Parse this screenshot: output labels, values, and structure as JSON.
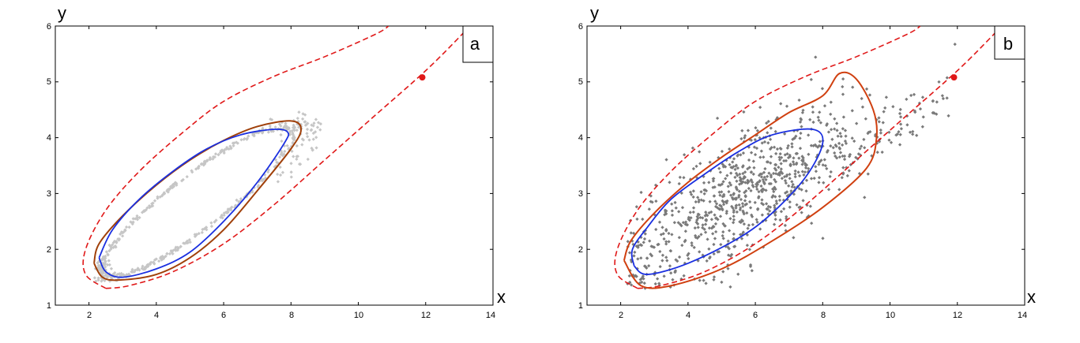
{
  "figure": {
    "panels": [
      {
        "panel_label": "a",
        "xlabel": "x",
        "ylabel": "y",
        "xlim": [
          1,
          14
        ],
        "ylim": [
          1,
          6
        ],
        "x_ticks": [
          "2",
          "4",
          "6",
          "8",
          "10",
          "12",
          "14"
        ],
        "y_ticks": [
          "1",
          "2",
          "3",
          "4",
          "5",
          "6"
        ]
      },
      {
        "panel_label": "b",
        "xlabel": "x",
        "ylabel": "y",
        "xlim": [
          1,
          14
        ],
        "ylim": [
          1,
          6
        ],
        "x_ticks": [
          "2",
          "4",
          "6",
          "8",
          "10",
          "12",
          "14"
        ],
        "y_ticks": [
          "1",
          "2",
          "3",
          "4",
          "5",
          "6"
        ]
      }
    ]
  },
  "colors": {
    "blue_curve": "#1a2fe0",
    "brown_curve_a": "#a0400a",
    "brown_curve_b": "#d04010",
    "dashed_curve": "#e01818",
    "point": "#e01818",
    "scatter_a": "#c6c6c6",
    "scatter_b": "#7a7a7a"
  },
  "chart_data": [
    {
      "type": "scatter",
      "panel": "a",
      "xlim": [
        1,
        14
      ],
      "ylim": [
        1,
        6
      ],
      "marked_point": {
        "x": 11.9,
        "y": 5.08
      },
      "series": [
        {
          "kind": "ellipse",
          "style": "solid",
          "color_key": "blue_curve",
          "points": [
            [
              2.3,
              1.85
            ],
            [
              2.5,
              1.6
            ],
            [
              3.0,
              1.5
            ],
            [
              4.0,
              1.65
            ],
            [
              5.0,
              1.95
            ],
            [
              6.0,
              2.5
            ],
            [
              7.0,
              3.2
            ],
            [
              7.8,
              3.9
            ],
            [
              7.9,
              4.1
            ],
            [
              7.5,
              4.15
            ],
            [
              6.5,
              4.05
            ],
            [
              5.5,
              3.8
            ],
            [
              4.5,
              3.4
            ],
            [
              3.5,
              2.9
            ],
            [
              2.7,
              2.35
            ],
            [
              2.3,
              1.85
            ]
          ]
        },
        {
          "kind": "ellipse",
          "style": "solid",
          "color_key": "brown_curve_a",
          "points": [
            [
              2.15,
              1.75
            ],
            [
              2.4,
              1.5
            ],
            [
              2.9,
              1.45
            ],
            [
              4.0,
              1.55
            ],
            [
              5.0,
              1.85
            ],
            [
              6.0,
              2.35
            ],
            [
              7.0,
              3.05
            ],
            [
              8.0,
              3.8
            ],
            [
              8.3,
              4.15
            ],
            [
              8.0,
              4.3
            ],
            [
              7.0,
              4.2
            ],
            [
              6.0,
              3.95
            ],
            [
              5.0,
              3.6
            ],
            [
              4.0,
              3.15
            ],
            [
              3.0,
              2.6
            ],
            [
              2.3,
              2.1
            ],
            [
              2.15,
              1.75
            ]
          ]
        },
        {
          "kind": "boundary",
          "style": "dashed",
          "color_key": "dashed_curve",
          "points": [
            [
              2.5,
              1.3
            ],
            [
              3.2,
              1.35
            ],
            [
              4.5,
              1.6
            ],
            [
              6.0,
              2.1
            ],
            [
              7.5,
              2.8
            ],
            [
              9.0,
              3.6
            ],
            [
              10.5,
              4.4
            ],
            [
              12.0,
              5.2
            ],
            [
              13.0,
              5.8
            ],
            [
              13.3,
              6.0
            ]
          ]
        },
        {
          "kind": "boundary",
          "style": "dashed",
          "color_key": "dashed_curve",
          "points": [
            [
              2.5,
              1.3
            ],
            [
              1.9,
              1.55
            ],
            [
              1.9,
              2.0
            ],
            [
              2.5,
              2.7
            ],
            [
              3.5,
              3.4
            ],
            [
              4.8,
              4.1
            ],
            [
              6.0,
              4.65
            ],
            [
              7.5,
              5.1
            ],
            [
              9.0,
              5.45
            ],
            [
              10.5,
              5.85
            ],
            [
              10.9,
              6.0
            ]
          ]
        }
      ]
    },
    {
      "type": "scatter",
      "panel": "b",
      "xlim": [
        1,
        14
      ],
      "ylim": [
        1,
        6
      ],
      "marked_point": {
        "x": 11.9,
        "y": 5.08
      },
      "series": [
        {
          "kind": "ellipse",
          "style": "solid",
          "color_key": "blue_curve",
          "points": [
            [
              2.4,
              1.7
            ],
            [
              2.8,
              1.55
            ],
            [
              4.0,
              1.75
            ],
            [
              5.5,
              2.2
            ],
            [
              6.5,
              2.65
            ],
            [
              7.5,
              3.3
            ],
            [
              8.0,
              3.9
            ],
            [
              7.7,
              4.15
            ],
            [
              6.5,
              4.05
            ],
            [
              5.5,
              3.75
            ],
            [
              4.5,
              3.35
            ],
            [
              3.5,
              2.9
            ],
            [
              2.8,
              2.4
            ],
            [
              2.35,
              2.0
            ],
            [
              2.4,
              1.7
            ]
          ]
        },
        {
          "kind": "region",
          "style": "solid",
          "color_key": "brown_curve_b",
          "points": [
            [
              2.1,
              1.8
            ],
            [
              2.6,
              1.35
            ],
            [
              3.5,
              1.35
            ],
            [
              5.0,
              1.65
            ],
            [
              6.5,
              2.15
            ],
            [
              8.0,
              2.75
            ],
            [
              9.3,
              3.45
            ],
            [
              9.6,
              4.0
            ],
            [
              9.5,
              4.5
            ],
            [
              9.0,
              5.05
            ],
            [
              8.5,
              5.15
            ],
            [
              8.0,
              4.75
            ],
            [
              7.0,
              4.45
            ],
            [
              6.0,
              4.05
            ],
            [
              5.0,
              3.65
            ],
            [
              4.0,
              3.2
            ],
            [
              3.0,
              2.65
            ],
            [
              2.3,
              2.15
            ],
            [
              2.1,
              1.8
            ]
          ]
        },
        {
          "kind": "boundary",
          "style": "dashed",
          "color_key": "dashed_curve",
          "points": [
            [
              2.5,
              1.3
            ],
            [
              3.2,
              1.35
            ],
            [
              4.5,
              1.6
            ],
            [
              6.0,
              2.1
            ],
            [
              7.5,
              2.8
            ],
            [
              9.0,
              3.6
            ],
            [
              10.5,
              4.4
            ],
            [
              12.0,
              5.2
            ],
            [
              13.0,
              5.8
            ],
            [
              13.3,
              6.0
            ]
          ]
        },
        {
          "kind": "boundary",
          "style": "dashed",
          "color_key": "dashed_curve",
          "points": [
            [
              2.5,
              1.3
            ],
            [
              1.9,
              1.55
            ],
            [
              1.9,
              2.0
            ],
            [
              2.5,
              2.7
            ],
            [
              3.5,
              3.4
            ],
            [
              4.8,
              4.1
            ],
            [
              6.0,
              4.65
            ],
            [
              7.5,
              5.1
            ],
            [
              9.0,
              5.45
            ],
            [
              10.5,
              5.85
            ],
            [
              10.9,
              6.0
            ]
          ]
        }
      ]
    }
  ]
}
